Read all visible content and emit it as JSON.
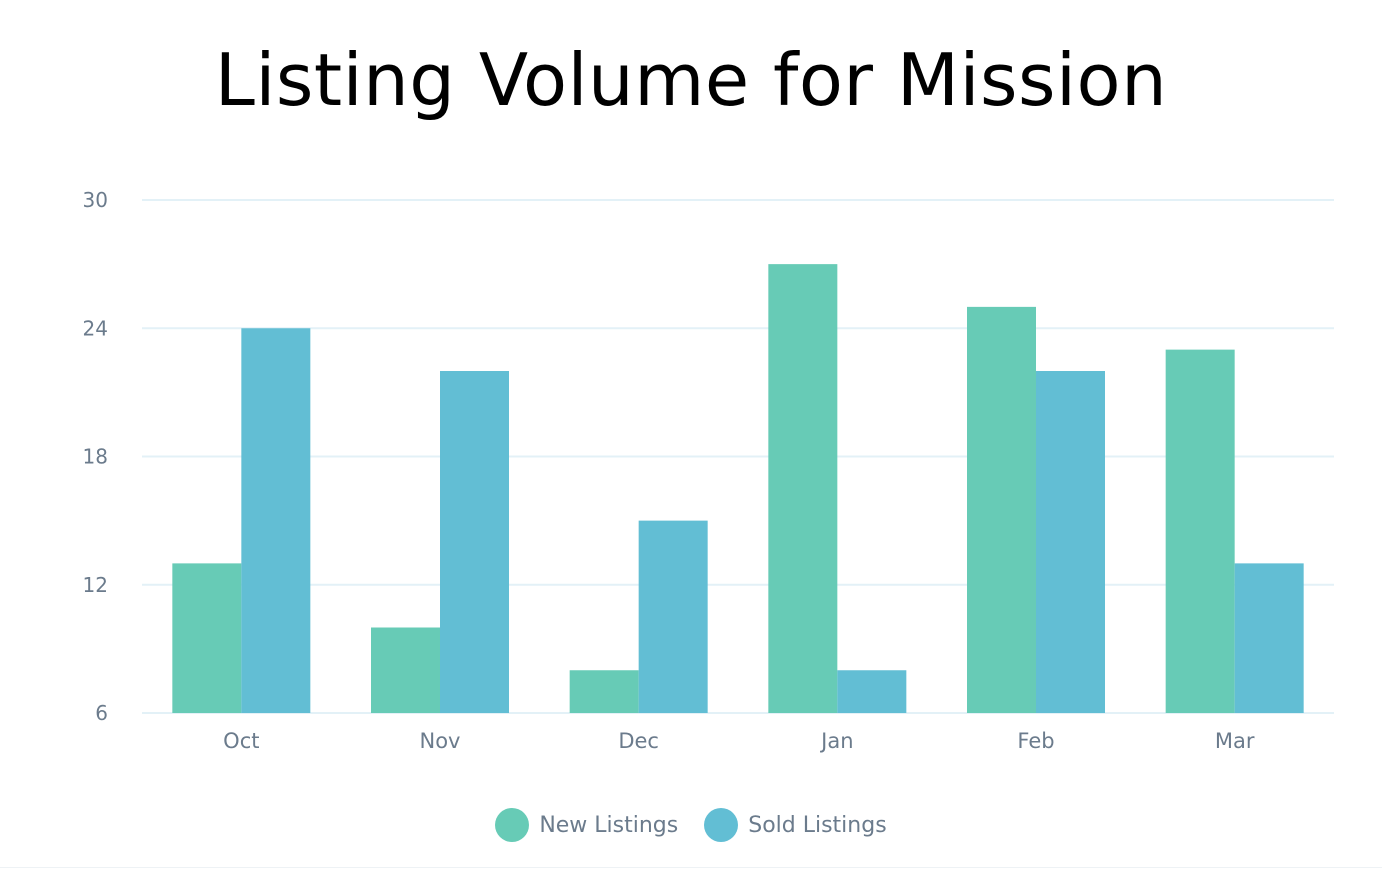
{
  "chart_data": {
    "type": "bar",
    "title": "Listing Volume for Mission",
    "xlabel": "",
    "ylabel": "",
    "categories": [
      "Oct",
      "Nov",
      "Dec",
      "Jan",
      "Feb",
      "Mar"
    ],
    "series": [
      {
        "name": "New Listings",
        "color": "#67cbb6",
        "values": [
          13,
          10,
          8,
          27,
          25,
          23
        ]
      },
      {
        "name": "Sold Listings",
        "color": "#62bed4",
        "values": [
          24,
          22,
          15,
          8,
          22,
          13
        ]
      }
    ],
    "ylim": [
      6,
      30
    ],
    "yticks": [
      6,
      12,
      18,
      24,
      30
    ],
    "grid": true,
    "legend_position": "bottom-center"
  }
}
